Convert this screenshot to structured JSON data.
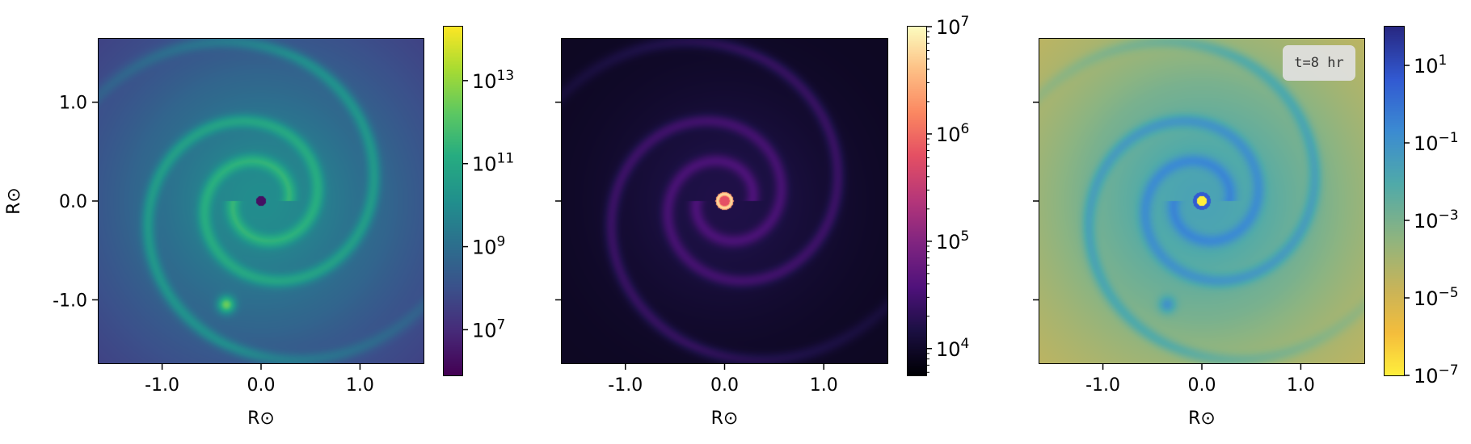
{
  "chart_data": [
    {
      "type": "heatmap",
      "panel": 1,
      "xlabel": "R⊙",
      "ylabel": "R⊙",
      "xlim": [
        -1.65,
        1.65
      ],
      "ylim": [
        -1.65,
        1.65
      ],
      "xticks": [
        -1.0,
        0.0,
        1.0
      ],
      "xtick_labels": [
        "-1.0",
        "0.0",
        "1.0"
      ],
      "yticks": [
        1.0,
        0.0,
        -1.0
      ],
      "ytick_labels": [
        "1.0",
        "0.0",
        "-1.0"
      ],
      "colormap": "viridis",
      "colorbar": {
        "scale": "log",
        "range_log10": [
          5.9,
          14.3
        ],
        "ticks_log10": [
          7,
          9,
          11,
          13
        ],
        "tick_labels": [
          "10",
          "10",
          "10",
          "10"
        ],
        "tick_exponents": [
          "7",
          "9",
          "11",
          "13"
        ]
      },
      "features": {
        "accretor": [
          0.0,
          0.0
        ],
        "donor": [
          -0.35,
          -1.05
        ]
      }
    },
    {
      "type": "heatmap",
      "panel": 2,
      "xlabel": "R⊙",
      "xlim": [
        -1.65,
        1.65
      ],
      "ylim": [
        -1.65,
        1.65
      ],
      "xticks": [
        -1.0,
        0.0,
        1.0
      ],
      "xtick_labels": [
        "-1.0",
        "0.0",
        "1.0"
      ],
      "colormap": "magma",
      "colorbar": {
        "scale": "log",
        "range_log10": [
          3.75,
          7.0
        ],
        "ticks_log10": [
          4,
          5,
          6,
          7
        ],
        "tick_labels": [
          "10",
          "10",
          "10",
          "10"
        ],
        "tick_exponents": [
          "4",
          "5",
          "6",
          "7"
        ]
      },
      "features": {
        "accretor": [
          0.0,
          0.0
        ],
        "donor": [
          -0.35,
          -1.05
        ]
      }
    },
    {
      "type": "heatmap",
      "panel": 3,
      "xlabel": "R⊙",
      "xlim": [
        -1.65,
        1.65
      ],
      "ylim": [
        -1.65,
        1.65
      ],
      "xticks": [
        -1.0,
        0.0,
        1.0
      ],
      "xtick_labels": [
        "-1.0",
        "0.0",
        "1.0"
      ],
      "colormap": "plasma-like reversed (yellow to blue)",
      "annotation": "t=8 hr",
      "colorbar": {
        "scale": "log",
        "range_log10": [
          -7.0,
          2.0
        ],
        "ticks_log10": [
          1,
          -1,
          -3,
          -5,
          -7
        ],
        "tick_labels": [
          "10",
          "10",
          "10",
          "10",
          "10"
        ],
        "tick_exponents": [
          "1",
          "−1",
          "−3",
          "−5",
          "−7"
        ]
      },
      "features": {
        "accretor": [
          0.0,
          0.0
        ],
        "donor": [
          -0.35,
          -1.05
        ]
      }
    }
  ]
}
